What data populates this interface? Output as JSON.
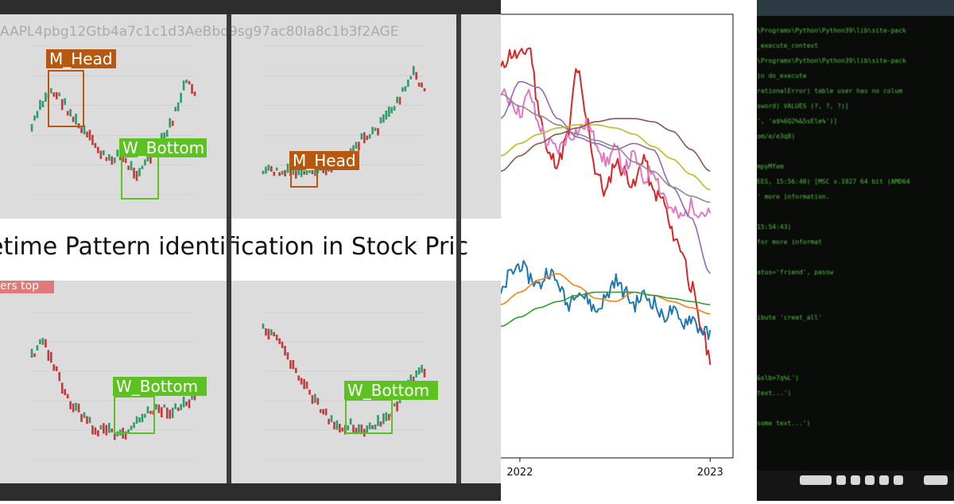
{
  "left_collage": {
    "headline": "etime Pattern identification in Stock Pric",
    "header_text_top": "AAPL4pbg12Gtb4a7c1c1d3AeBbq9sg97ac80Ia8c1b3f2AGE",
    "badge_text": "ers top",
    "top_left": {
      "label": "M_Head",
      "label2": "W_Bottom"
    },
    "top_right": {
      "label": "M_Head"
    },
    "bottom_left": {
      "label": "W_Bottom"
    },
    "bottom_right": {
      "label": "W_Bottom"
    },
    "colors": {
      "m_head": "#b8580e",
      "w_bottom": "#5cc21f",
      "up_candle": "#2e9c6a",
      "down_candle": "#c23a3a"
    }
  },
  "chart_data": {
    "type": "line",
    "xlim": [
      2021.9,
      2023.12
    ],
    "ylim": [
      0,
      100
    ],
    "xticks": [
      "2022",
      "2023"
    ],
    "xtick_values": [
      2022.0,
      2023.0
    ],
    "grid": false,
    "series": [
      {
        "color": "#d62728",
        "kind": "noisy",
        "x": [
          2021.9,
          2021.95,
          2022.0,
          2022.05,
          2022.1,
          2022.15,
          2022.2,
          2022.25,
          2022.3,
          2022.35,
          2022.4,
          2022.45,
          2022.5,
          2022.55,
          2022.6,
          2022.65,
          2022.7,
          2022.75,
          2022.8,
          2022.85,
          2022.9,
          2022.95,
          2023.0
        ],
        "y": [
          88,
          93,
          92,
          95,
          75,
          60,
          58,
          66,
          88,
          72,
          55,
          48,
          58,
          55,
          50,
          60,
          48,
          46,
          35,
          30,
          18,
          5,
          -5
        ]
      },
      {
        "color": "#e377c2",
        "kind": "noisy",
        "x": [
          2021.9,
          2021.95,
          2022.0,
          2022.05,
          2022.1,
          2022.15,
          2022.2,
          2022.25,
          2022.3,
          2022.35,
          2022.4,
          2022.45,
          2022.5,
          2022.55,
          2022.6,
          2022.65,
          2022.7,
          2022.75,
          2022.8,
          2022.85,
          2022.9,
          2022.95,
          2023.0
        ],
        "y": [
          80,
          78,
          74,
          80,
          70,
          64,
          62,
          66,
          68,
          70,
          65,
          58,
          62,
          56,
          60,
          52,
          56,
          48,
          42,
          40,
          44,
          42,
          41
        ]
      },
      {
        "color": "#9467bd",
        "kind": "smooth",
        "x": [
          2021.9,
          2022.0,
          2022.1,
          2022.2,
          2022.3,
          2022.4,
          2022.5,
          2022.6,
          2022.7,
          2022.8,
          2022.9,
          2023.0
        ],
        "y": [
          72,
          84,
          82,
          72,
          66,
          64,
          62,
          64,
          62,
          50,
          40,
          22
        ]
      },
      {
        "color": "#8c8c8c",
        "kind": "smooth",
        "x": [
          2021.9,
          2022.0,
          2022.1,
          2022.2,
          2022.3,
          2022.4,
          2022.5,
          2022.6,
          2022.7,
          2022.8,
          2022.9,
          2023.0
        ],
        "y": [
          80,
          76,
          73,
          70,
          67,
          65,
          63,
          58,
          55,
          50,
          47,
          45
        ]
      },
      {
        "color": "#bcbd22",
        "kind": "smooth",
        "x": [
          2021.9,
          2022.0,
          2022.1,
          2022.2,
          2022.3,
          2022.4,
          2022.5,
          2022.6,
          2022.7,
          2022.8,
          2022.9,
          2023.0
        ],
        "y": [
          60,
          64,
          67,
          69,
          70,
          70,
          69,
          67,
          63,
          59,
          54,
          49
        ]
      },
      {
        "color": "#8c564b",
        "kind": "smooth",
        "x": [
          2021.9,
          2022.0,
          2022.1,
          2022.2,
          2022.3,
          2022.4,
          2022.5,
          2022.6,
          2022.7,
          2022.8,
          2022.9,
          2023.0
        ],
        "y": [
          55,
          60,
          64,
          67,
          69,
          71,
          72,
          72,
          71,
          68,
          62,
          55
        ]
      },
      {
        "color": "#1f77b4",
        "kind": "noisy",
        "x": [
          2021.9,
          2021.95,
          2022.0,
          2022.05,
          2022.1,
          2022.15,
          2022.2,
          2022.25,
          2022.3,
          2022.35,
          2022.4,
          2022.45,
          2022.5,
          2022.55,
          2022.6,
          2022.65,
          2022.7,
          2022.75,
          2022.8,
          2022.85,
          2022.9,
          2022.95,
          2023.0
        ],
        "y": [
          15,
          22,
          25,
          21,
          18,
          23,
          19,
          12,
          17,
          14,
          10,
          14,
          20,
          16,
          12,
          15,
          13,
          8,
          10,
          6,
          8,
          4,
          2
        ]
      },
      {
        "color": "#ff7f0e",
        "kind": "smooth",
        "x": [
          2021.9,
          2022.0,
          2022.1,
          2022.2,
          2022.3,
          2022.4,
          2022.5,
          2022.6,
          2022.7,
          2022.8,
          2022.9,
          2023.0
        ],
        "y": [
          12,
          16,
          20,
          22,
          18,
          14,
          13,
          16,
          15,
          13,
          11,
          9
        ]
      },
      {
        "color": "#2ca02c",
        "kind": "smooth",
        "x": [
          2021.9,
          2022.0,
          2022.1,
          2022.2,
          2022.3,
          2022.4,
          2022.5,
          2022.6,
          2022.7,
          2022.8,
          2022.9,
          2023.0
        ],
        "y": [
          5,
          8,
          11,
          13,
          15,
          16,
          16,
          16,
          15,
          14,
          13,
          12
        ]
      }
    ]
  },
  "terminal": {
    "lines": [
      "\\Programs\\Python\\Python39\\lib\\site-pack",
      "  _execute_context",
      "\\Programs\\Python\\Python39\\lib\\site-pack",
      "  in do_execute",
      "rationalError) table user has no colum",
      "sword) VALUES (?, ?, ?)]",
      "  ', 'a$%6Q2%&5sEle%')]",
      "om/e/e3q8)",
      "",
      "mpyMfem",
      "EES, 15:56:40) [MSC v.1927 64 bit (AMD64",
      "  ' more information.",
      "",
      "15:54:43)",
      " for more informat",
      "",
      "atus='friend', passw",
      "",
      "",
      "ibute 'creat_all'",
      "",
      "",
      "",
      "&slb>7q%L')",
      " text...')",
      "",
      " some text...')"
    ],
    "colors": {
      "text": "#5fe04a"
    }
  }
}
